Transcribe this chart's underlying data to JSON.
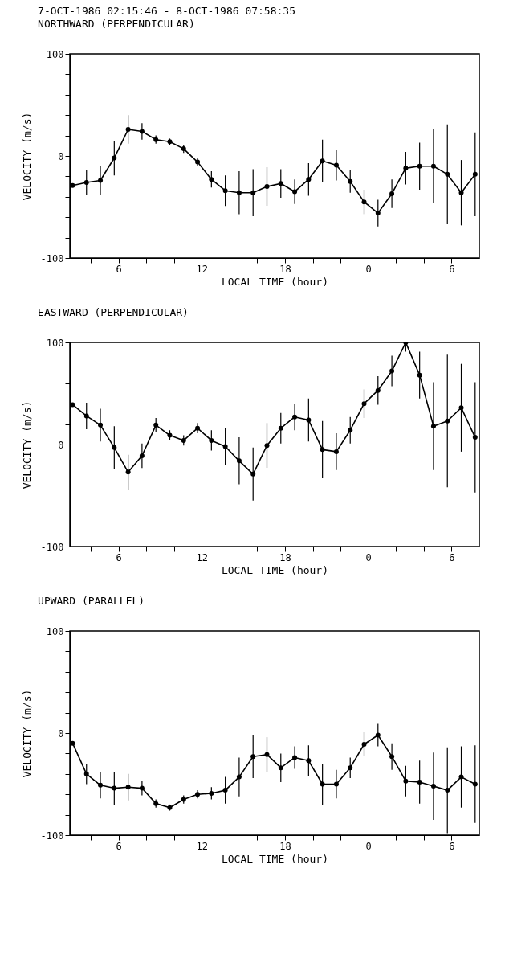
{
  "chart_data": [
    {
      "type": "line",
      "title": "7-OCT-1986 02:15:46 -  8-OCT-1986 07:58:35",
      "subtitle": "NORTHWARD (PERPENDICULAR)",
      "xlabel": "LOCAL TIME (hour)",
      "ylabel": "VELOCITY (m/s)",
      "x": [
        "1986-10-07T02:42",
        "1986-10-07T03:42",
        "1986-10-07T04:42",
        "1986-10-07T05:42",
        "1986-10-07T06:42",
        "1986-10-07T07:42",
        "1986-10-07T08:42",
        "1986-10-07T09:42",
        "1986-10-07T10:42",
        "1986-10-07T11:42",
        "1986-10-07T12:42",
        "1986-10-07T13:42",
        "1986-10-07T14:42",
        "1986-10-07T15:42",
        "1986-10-07T16:42",
        "1986-10-07T17:42",
        "1986-10-07T18:42",
        "1986-10-07T19:42",
        "1986-10-07T20:42",
        "1986-10-07T21:42",
        "1986-10-07T22:42",
        "1986-10-07T23:42",
        "1986-10-08T00:42",
        "1986-10-08T01:42",
        "1986-10-08T02:42",
        "1986-10-08T03:42",
        "1986-10-08T04:42",
        "1986-10-08T05:42",
        "1986-10-08T06:42",
        "1986-10-08T07:42"
      ],
      "series": [
        {
          "color": "#000000",
          "values": [
            -29,
            -26,
            -24,
            -2,
            26,
            24,
            16,
            14,
            7,
            -6,
            -23,
            -34,
            -36,
            -36,
            -30,
            -27,
            -35,
            -23,
            -5,
            -9,
            -25,
            -45,
            -56,
            -37,
            -12,
            -10,
            -10,
            -18,
            -36,
            -18
          ],
          "errors": [
            null,
            12,
            14,
            17,
            14,
            8,
            4,
            3,
            4,
            4,
            8,
            15,
            21,
            23,
            19,
            14,
            12,
            16,
            21,
            15,
            11,
            12,
            13,
            14,
            16,
            23,
            36,
            49,
            32,
            41
          ]
        }
      ],
      "xlim": [
        "1986-10-07T02:30",
        "1986-10-08T08:00"
      ],
      "xticks": [
        {
          "value": "1986-10-07T04:00",
          "label": null
        },
        {
          "value": "1986-10-07T06:00",
          "label": "6"
        },
        {
          "value": "1986-10-07T08:00",
          "label": null
        },
        {
          "value": "1986-10-07T10:00",
          "label": null
        },
        {
          "value": "1986-10-07T12:00",
          "label": "12"
        },
        {
          "value": "1986-10-07T14:00",
          "label": null
        },
        {
          "value": "1986-10-07T16:00",
          "label": null
        },
        {
          "value": "1986-10-07T18:00",
          "label": "18"
        },
        {
          "value": "1986-10-07T20:00",
          "label": null
        },
        {
          "value": "1986-10-07T22:00",
          "label": null
        },
        {
          "value": "1986-10-08T00:00",
          "label": "0"
        },
        {
          "value": "1986-10-08T02:00",
          "label": null
        },
        {
          "value": "1986-10-08T04:00",
          "label": null
        },
        {
          "value": "1986-10-08T06:00",
          "label": "6"
        }
      ],
      "ylim": [
        -100,
        100
      ],
      "yticks": [
        -100,
        {
          "value": -80,
          "label": null
        },
        {
          "value": -60,
          "label": null
        },
        {
          "value": -40,
          "label": null
        },
        {
          "value": -20,
          "label": null
        },
        0,
        {
          "value": 20,
          "label": null
        },
        {
          "value": 40,
          "label": null
        },
        {
          "value": 60,
          "label": null
        },
        {
          "value": 80,
          "label": null
        },
        100
      ],
      "marker": "circle",
      "line_style": "solid"
    },
    {
      "type": "line",
      "title": "EASTWARD (PERPENDICULAR)",
      "xlabel": "LOCAL TIME (hour)",
      "ylabel": "VELOCITY (m/s)",
      "x": [
        "1986-10-07T02:42",
        "1986-10-07T03:42",
        "1986-10-07T04:42",
        "1986-10-07T05:42",
        "1986-10-07T06:42",
        "1986-10-07T07:42",
        "1986-10-07T08:42",
        "1986-10-07T09:42",
        "1986-10-07T10:42",
        "1986-10-07T11:42",
        "1986-10-07T12:42",
        "1986-10-07T13:42",
        "1986-10-07T14:42",
        "1986-10-07T15:42",
        "1986-10-07T16:42",
        "1986-10-07T17:42",
        "1986-10-07T18:42",
        "1986-10-07T19:42",
        "1986-10-07T20:42",
        "1986-10-07T21:42",
        "1986-10-07T22:42",
        "1986-10-07T23:42",
        "1986-10-08T00:42",
        "1986-10-08T01:42",
        "1986-10-08T02:42",
        "1986-10-08T03:42",
        "1986-10-08T04:42",
        "1986-10-08T05:42",
        "1986-10-08T06:42",
        "1986-10-08T07:42"
      ],
      "series": [
        {
          "color": "#000000",
          "values": [
            39,
            28,
            19,
            -3,
            -27,
            -11,
            19,
            9,
            4,
            16,
            4,
            -2,
            -16,
            -29,
            -1,
            16,
            27,
            24,
            -5,
            -7,
            14,
            40,
            53,
            72,
            100,
            68,
            18,
            23,
            36,
            7
          ],
          "errors": [
            null,
            13,
            16,
            21,
            17,
            12,
            7,
            5,
            5,
            5,
            10,
            18,
            23,
            26,
            22,
            15,
            13,
            21,
            28,
            18,
            13,
            14,
            14,
            15,
            9,
            23,
            43,
            65,
            43,
            54
          ]
        }
      ],
      "xlim": [
        "1986-10-07T02:30",
        "1986-10-08T08:00"
      ],
      "xticks": [
        {
          "value": "1986-10-07T04:00",
          "label": null
        },
        {
          "value": "1986-10-07T06:00",
          "label": "6"
        },
        {
          "value": "1986-10-07T08:00",
          "label": null
        },
        {
          "value": "1986-10-07T10:00",
          "label": null
        },
        {
          "value": "1986-10-07T12:00",
          "label": "12"
        },
        {
          "value": "1986-10-07T14:00",
          "label": null
        },
        {
          "value": "1986-10-07T16:00",
          "label": null
        },
        {
          "value": "1986-10-07T18:00",
          "label": "18"
        },
        {
          "value": "1986-10-07T20:00",
          "label": null
        },
        {
          "value": "1986-10-07T22:00",
          "label": null
        },
        {
          "value": "1986-10-08T00:00",
          "label": "0"
        },
        {
          "value": "1986-10-08T02:00",
          "label": null
        },
        {
          "value": "1986-10-08T04:00",
          "label": null
        },
        {
          "value": "1986-10-08T06:00",
          "label": "6"
        }
      ],
      "ylim": [
        -100,
        100
      ],
      "yticks": [
        -100,
        {
          "value": -80,
          "label": null
        },
        {
          "value": -60,
          "label": null
        },
        {
          "value": -40,
          "label": null
        },
        {
          "value": -20,
          "label": null
        },
        0,
        {
          "value": 20,
          "label": null
        },
        {
          "value": 40,
          "label": null
        },
        {
          "value": 60,
          "label": null
        },
        {
          "value": 80,
          "label": null
        },
        100
      ],
      "marker": "circle",
      "line_style": "solid"
    },
    {
      "type": "line",
      "title": "UPWARD (PARALLEL)",
      "xlabel": "LOCAL TIME (hour)",
      "ylabel": "VELOCITY (m/s)",
      "x": [
        "1986-10-07T02:42",
        "1986-10-07T03:42",
        "1986-10-07T04:42",
        "1986-10-07T05:42",
        "1986-10-07T06:42",
        "1986-10-07T07:42",
        "1986-10-07T08:42",
        "1986-10-07T09:42",
        "1986-10-07T10:42",
        "1986-10-07T11:42",
        "1986-10-07T12:42",
        "1986-10-07T13:42",
        "1986-10-07T14:42",
        "1986-10-07T15:42",
        "1986-10-07T16:42",
        "1986-10-07T17:42",
        "1986-10-07T18:42",
        "1986-10-07T19:42",
        "1986-10-07T20:42",
        "1986-10-07T21:42",
        "1986-10-07T22:42",
        "1986-10-07T23:42",
        "1986-10-08T00:42",
        "1986-10-08T01:42",
        "1986-10-08T02:42",
        "1986-10-08T03:42",
        "1986-10-08T04:42",
        "1986-10-08T05:42",
        "1986-10-08T06:42",
        "1986-10-08T07:42"
      ],
      "series": [
        {
          "color": "#000000",
          "values": [
            -10,
            -40,
            -51,
            -54,
            -53,
            -54,
            -69,
            -73,
            -65,
            -60,
            -59,
            -56,
            -43,
            -23,
            -21,
            -34,
            -24,
            -27,
            -50,
            -50,
            -34,
            -11,
            -2,
            -23,
            -47,
            -48,
            -52,
            -56,
            -43,
            -50
          ],
          "errors": [
            null,
            10,
            13,
            16,
            13,
            7,
            4,
            3,
            4,
            4,
            6,
            13,
            19,
            21,
            17,
            14,
            11,
            15,
            20,
            14,
            10,
            12,
            11,
            13,
            15,
            21,
            33,
            42,
            30,
            38
          ]
        }
      ],
      "xlim": [
        "1986-10-07T02:30",
        "1986-10-08T08:00"
      ],
      "xticks": [
        {
          "value": "1986-10-07T04:00",
          "label": null
        },
        {
          "value": "1986-10-07T06:00",
          "label": "6"
        },
        {
          "value": "1986-10-07T08:00",
          "label": null
        },
        {
          "value": "1986-10-07T10:00",
          "label": null
        },
        {
          "value": "1986-10-07T12:00",
          "label": "12"
        },
        {
          "value": "1986-10-07T14:00",
          "label": null
        },
        {
          "value": "1986-10-07T16:00",
          "label": null
        },
        {
          "value": "1986-10-07T18:00",
          "label": "18"
        },
        {
          "value": "1986-10-07T20:00",
          "label": null
        },
        {
          "value": "1986-10-07T22:00",
          "label": null
        },
        {
          "value": "1986-10-08T00:00",
          "label": "0"
        },
        {
          "value": "1986-10-08T02:00",
          "label": null
        },
        {
          "value": "1986-10-08T04:00",
          "label": null
        },
        {
          "value": "1986-10-08T06:00",
          "label": "6"
        }
      ],
      "ylim": [
        -100,
        100
      ],
      "yticks": [
        -100,
        {
          "value": -80,
          "label": null
        },
        {
          "value": -60,
          "label": null
        },
        {
          "value": -40,
          "label": null
        },
        {
          "value": -20,
          "label": null
        },
        0,
        {
          "value": 20,
          "label": null
        },
        {
          "value": 40,
          "label": null
        },
        {
          "value": 60,
          "label": null
        },
        {
          "value": 80,
          "label": null
        },
        100
      ],
      "marker": "circle",
      "line_style": "solid"
    }
  ]
}
